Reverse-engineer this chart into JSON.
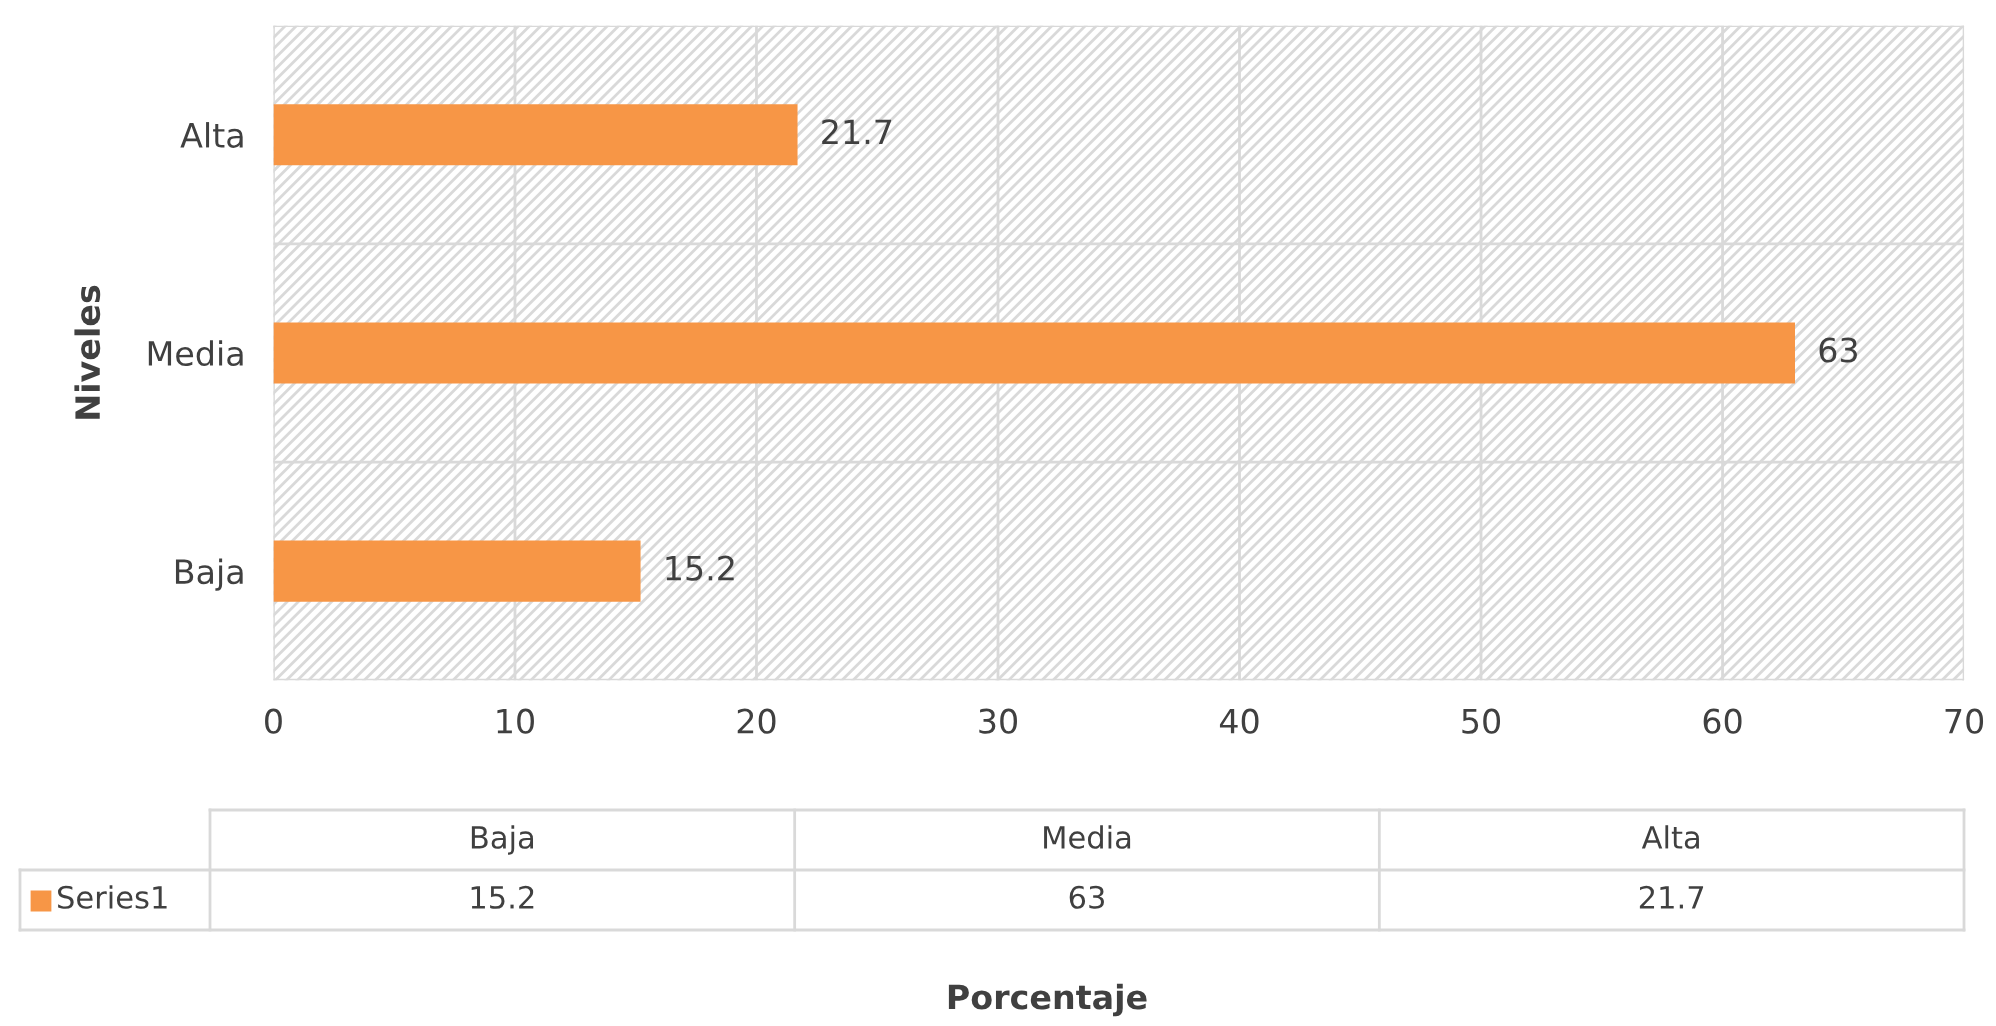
{
  "chart_data": {
    "type": "bar",
    "orientation": "horizontal",
    "ylabel": "Niveles",
    "categories": [
      "Alta",
      "Media",
      "Baja"
    ],
    "series": [
      {
        "name": "Series1",
        "color": "#f79646",
        "values": [
          21.7,
          63,
          15.2
        ]
      }
    ],
    "xlim": [
      0,
      70
    ],
    "xticks": [
      0,
      10,
      20,
      30,
      40,
      50,
      60,
      70
    ],
    "grid": true,
    "data_labels": true,
    "legend": "bottom",
    "annotations": [
      "15.2",
      "63",
      "21.7",
      "Porcentaje"
    ]
  }
}
